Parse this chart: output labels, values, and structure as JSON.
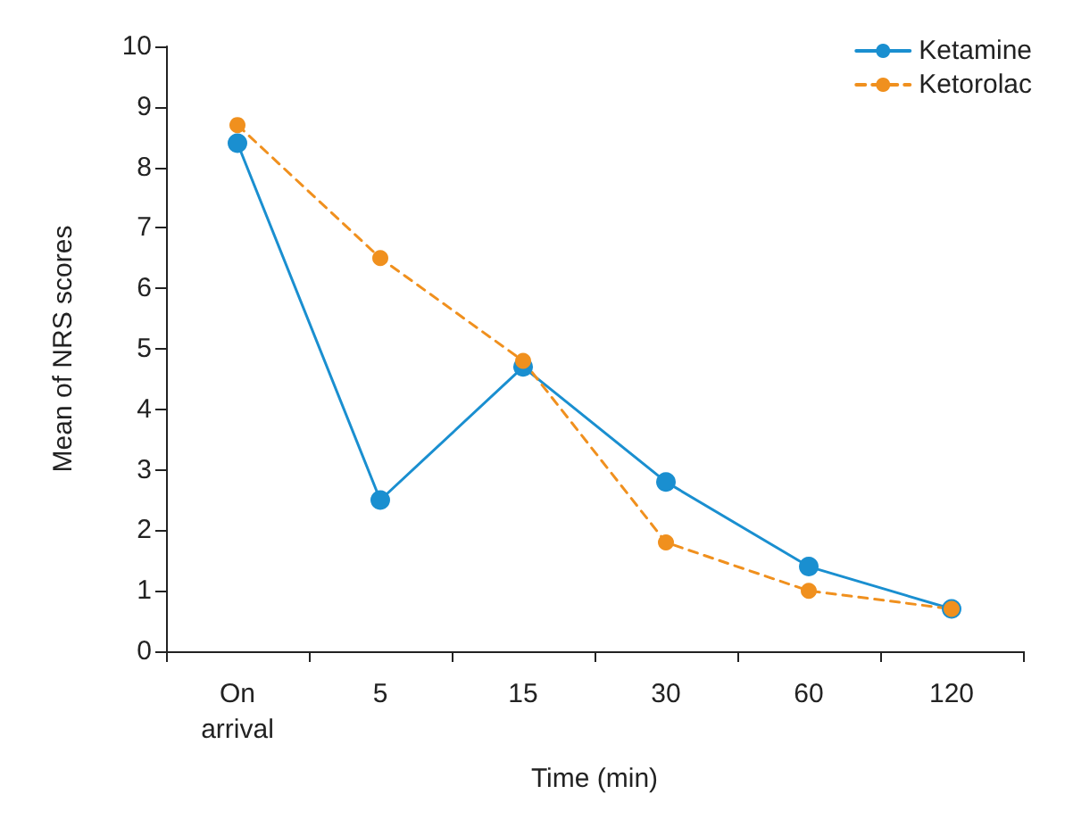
{
  "chart_data": {
    "type": "line",
    "xlabel": "Time (min)",
    "ylabel": "Mean of NRS scores",
    "categories": [
      "On\narrival",
      "5",
      "15",
      "30",
      "60",
      "120"
    ],
    "ylim": [
      0,
      10
    ],
    "yticks": [
      0,
      1,
      2,
      3,
      4,
      5,
      6,
      7,
      8,
      9,
      10
    ],
    "grid": false,
    "legend": "top right",
    "marker": "circle",
    "series": [
      {
        "name": "Ketamine",
        "color": "#1a8fd0",
        "line_style": "solid",
        "values": [
          8.4,
          2.5,
          4.7,
          2.8,
          1.4,
          0.7
        ]
      },
      {
        "name": "Ketorolac",
        "color": "#f0901e",
        "line_style": "dashed",
        "values": [
          8.7,
          6.5,
          4.8,
          1.8,
          1.0,
          0.7
        ]
      }
    ]
  }
}
